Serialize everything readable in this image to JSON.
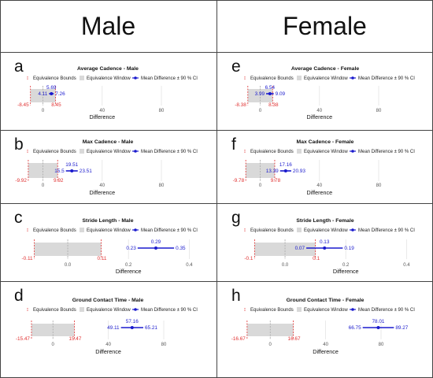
{
  "columns": {
    "male": "Male",
    "female": "Female"
  },
  "legend": {
    "bounds": "Equivalence Bounds",
    "window": "Equivalence Window",
    "mean": "Mean Difference ± 90 % CI"
  },
  "colors": {
    "bounds": "#e03030",
    "window": "#d9d9d9",
    "mean": "#1a1acd",
    "grid": "#e4e4e4"
  },
  "chart_data": [
    {
      "letter": "a",
      "type": "forest",
      "title": "Average Cadence - Male",
      "xlabel": "Difference",
      "xlim": [
        -12,
        105
      ],
      "xticks": [
        0,
        40,
        80
      ],
      "bounds": [
        -8.45,
        8.45
      ],
      "bound_labels": [
        "-8.45",
        "8.45"
      ],
      "mean": 5.69,
      "ci": [
        4.11,
        7.26
      ],
      "mean_label": "5.69",
      "ci_labels": [
        "4.11",
        "7.26"
      ]
    },
    {
      "letter": "e",
      "type": "forest",
      "title": "Average Cadence - Female",
      "xlabel": "Difference",
      "xlim": [
        -12,
        105
      ],
      "xticks": [
        0,
        40,
        80
      ],
      "bounds": [
        -8.38,
        8.38
      ],
      "bound_labels": [
        "-8.38",
        "8.38"
      ],
      "mean": 6.54,
      "ci": [
        3.99,
        9.09
      ],
      "mean_label": "6.54",
      "ci_labels": [
        "3.99",
        "9.09"
      ]
    },
    {
      "letter": "b",
      "type": "forest",
      "title": "Max Cadence - Male",
      "xlabel": "Difference",
      "xlim": [
        -12,
        105
      ],
      "xticks": [
        0,
        40,
        80
      ],
      "bounds": [
        -9.92,
        9.92
      ],
      "bound_labels": [
        "-9.92",
        "9.92"
      ],
      "mean": 19.51,
      "ci": [
        15.5,
        23.51
      ],
      "mean_label": "19.51",
      "ci_labels": [
        "15.5",
        "23.51"
      ]
    },
    {
      "letter": "f",
      "type": "forest",
      "title": "Max Cadence - Female",
      "xlabel": "Difference",
      "xlim": [
        -12,
        105
      ],
      "xticks": [
        0,
        40,
        80
      ],
      "bounds": [
        -9.78,
        9.78
      ],
      "bound_labels": [
        "-9.78",
        "9.78"
      ],
      "mean": 17.16,
      "ci": [
        13.39,
        20.93
      ],
      "mean_label": "17.16",
      "ci_labels": [
        "13.39",
        "20.93"
      ]
    },
    {
      "letter": "c",
      "type": "forest",
      "title": "Stride Length - Male",
      "xlabel": "Difference",
      "xlim": [
        -0.14,
        0.43
      ],
      "xticks": [
        0.0,
        0.2,
        0.4
      ],
      "xtick_labels": [
        "0.0",
        "0.2",
        "0.4"
      ],
      "bounds": [
        -0.11,
        0.11
      ],
      "bound_labels": [
        "-0.11",
        "0.11"
      ],
      "mean": 0.29,
      "ci": [
        0.23,
        0.35
      ],
      "mean_label": "0.29",
      "ci_labels": [
        "0.23",
        "0.35"
      ]
    },
    {
      "letter": "g",
      "type": "forest",
      "title": "Stride Length - Female",
      "xlabel": "Difference",
      "xlim": [
        -0.14,
        0.43
      ],
      "xticks": [
        0.0,
        0.2,
        0.4
      ],
      "xtick_labels": [
        "0.0",
        "0.2",
        "0.4"
      ],
      "bounds": [
        -0.1,
        0.1
      ],
      "bound_labels": [
        "-0.1",
        "0.1"
      ],
      "mean": 0.13,
      "ci": [
        0.07,
        0.19
      ],
      "mean_label": "0.13",
      "ci_labels": [
        "0.07",
        "0.19"
      ]
    },
    {
      "letter": "d",
      "type": "forest",
      "title": "Ground Contact Time - Male",
      "xlabel": "Difference",
      "xlim": [
        -20,
        105
      ],
      "xticks": [
        0,
        40,
        80
      ],
      "bounds": [
        -15.47,
        15.47
      ],
      "bound_labels": [
        "-15.47",
        "15.47"
      ],
      "mean": 57.16,
      "ci": [
        49.11,
        65.21
      ],
      "mean_label": "57.16",
      "ci_labels": [
        "49.11",
        "65.21"
      ]
    },
    {
      "letter": "h",
      "type": "forest",
      "title": "Ground Contact Time - Female",
      "xlabel": "Difference",
      "xlim": [
        -20,
        105
      ],
      "xticks": [
        0,
        40,
        80
      ],
      "bounds": [
        -16.67,
        16.67
      ],
      "bound_labels": [
        "-16.67",
        "16.67"
      ],
      "mean": 78.01,
      "ci": [
        66.75,
        89.27
      ],
      "mean_label": "78.01",
      "ci_labels": [
        "66.75",
        "89.27"
      ]
    }
  ]
}
